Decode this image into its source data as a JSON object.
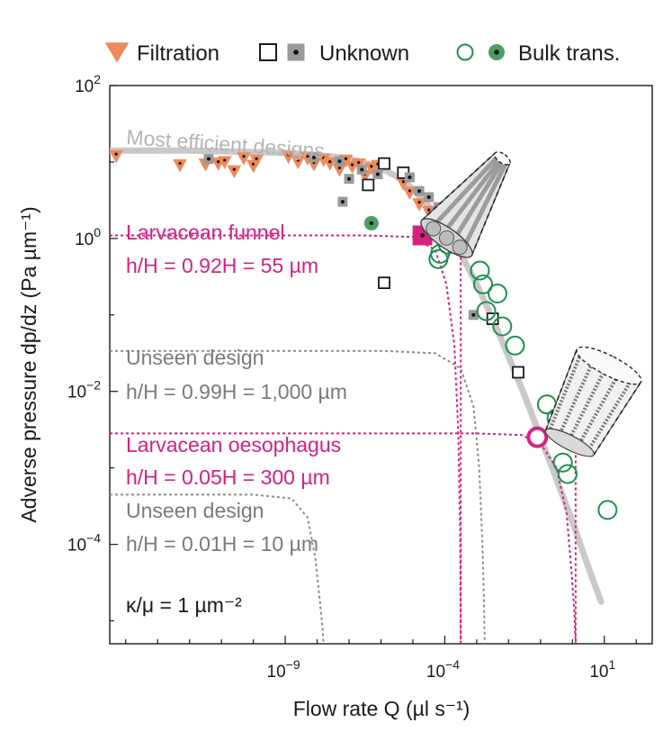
{
  "chart_data": {
    "type": "scatter",
    "title": "",
    "xlabel": "Flow rate Q (µl s⁻¹)",
    "ylabel": "Adverse pressure dp/dz (Pa µm⁻¹)",
    "x_scale": "log10",
    "y_scale": "log10",
    "xlim_log10": [
      -14.5,
      2.5
    ],
    "ylim_log10": [
      -5.3,
      2.0
    ],
    "x_ticks": [
      {
        "exp": -9,
        "base": "10",
        "sup": "−9"
      },
      {
        "exp": -4,
        "base": "10",
        "sup": "−4"
      },
      {
        "exp": 1,
        "base": "10",
        "sup": "1"
      }
    ],
    "y_ticks": [
      {
        "exp": 2,
        "base": "10",
        "sup": "2"
      },
      {
        "exp": 0,
        "base": "10",
        "sup": "0"
      },
      {
        "exp": -2,
        "base": "10",
        "sup": "−2"
      },
      {
        "exp": -4,
        "base": "10",
        "sup": "−4"
      }
    ],
    "legend": {
      "position": "top",
      "items": [
        {
          "label": "Filtration",
          "marker": "orange-triangle"
        },
        {
          "label": "Unknown",
          "marker": "open-and-filled-square"
        },
        {
          "label": "Bulk trans.",
          "marker": "open-and-filled-green-circle"
        }
      ]
    },
    "colors": {
      "filtration": "#ee8a5a",
      "unknown_fill": "#9a9a9a",
      "bulk": "#1f8f4e",
      "bulk_fill": "#4a9e66",
      "magenta": "#d6217f",
      "gray_curve": "#c9c9c9",
      "gray_text": "#7a7a7a"
    },
    "annotations": {
      "most_efficient": "Most efficient designs",
      "funnel_title": "Larvacean funnel",
      "funnel_ratio": "h/H = 0.92H = 55 µm",
      "unseen1_title": "Unseen design",
      "unseen1_ratio": "h/H = 0.99H = 1,000 µm",
      "oeso_title": "Larvacean oesophagus",
      "oeso_ratio": "h/H = 0.05H = 300 µm",
      "unseen2_title": "Unseen design",
      "unseen2_ratio": "h/H = 0.01H = 10 µm",
      "kappa": "κ/μ = 1 µm⁻²"
    },
    "efficiency_curve": {
      "x": [
        -14.5,
        -13,
        -12,
        -11,
        -10,
        -9,
        -8.5,
        -8,
        -7.5,
        -7,
        -6.5,
        -6,
        -5.5,
        -5,
        -4.5,
        -4,
        -3.5,
        -3,
        -2.5,
        -2,
        -1.5,
        -1,
        -0.5,
        0,
        0.5,
        0.9
      ],
      "y": [
        1.15,
        1.15,
        1.15,
        1.14,
        1.13,
        1.12,
        1.11,
        1.09,
        1.07,
        1.04,
        0.99,
        0.92,
        0.81,
        0.65,
        0.42,
        0.14,
        -0.2,
        -0.6,
        -1.05,
        -1.55,
        -2.05,
        -2.6,
        -3.15,
        -3.7,
        -4.3,
        -4.75
      ]
    },
    "design_curves": [
      {
        "name": "larvacean-funnel-curve",
        "color": "magenta",
        "y_plateau": 0.04,
        "x_cutoff": -3.5,
        "points": [
          [
            -14.5,
            0.04
          ],
          [
            -6.5,
            0.04
          ],
          [
            -5,
            0.02
          ],
          [
            -4.3,
            -0.15
          ],
          [
            -3.95,
            -0.6
          ],
          [
            -3.7,
            -1.4
          ],
          [
            -3.58,
            -2.5
          ],
          [
            -3.52,
            -3.8
          ],
          [
            -3.5,
            -5.3
          ]
        ]
      },
      {
        "name": "unseen-design-1-curve",
        "color": "gray",
        "y_plateau": -1.47,
        "x_cutoff": -2.75,
        "points": [
          [
            -14.5,
            -1.47
          ],
          [
            -6,
            -1.47
          ],
          [
            -4.3,
            -1.5
          ],
          [
            -3.5,
            -1.7
          ],
          [
            -3.1,
            -2.2
          ],
          [
            -2.92,
            -3.0
          ],
          [
            -2.82,
            -4.0
          ],
          [
            -2.77,
            -4.8
          ],
          [
            -2.75,
            -5.3
          ]
        ]
      },
      {
        "name": "larvacean-oesophagus-curve",
        "color": "magenta",
        "y_plateau": -2.55,
        "x_cutoff": 0.1,
        "points": [
          [
            -14.5,
            -2.55
          ],
          [
            -3,
            -2.55
          ],
          [
            -1.6,
            -2.57
          ],
          [
            -1.0,
            -2.68
          ],
          [
            -0.5,
            -3.0
          ],
          [
            -0.18,
            -3.6
          ],
          [
            -0.02,
            -4.4
          ],
          [
            0.06,
            -4.9
          ],
          [
            0.1,
            -5.3
          ]
        ]
      },
      {
        "name": "unseen-design-2-curve",
        "color": "gray",
        "y_plateau": -3.35,
        "x_cutoff": -7.8,
        "points": [
          [
            -14.5,
            -3.35
          ],
          [
            -10,
            -3.35
          ],
          [
            -8.8,
            -3.4
          ],
          [
            -8.3,
            -3.65
          ],
          [
            -8.05,
            -4.2
          ],
          [
            -7.9,
            -4.8
          ],
          [
            -7.83,
            -5.1
          ],
          [
            -7.8,
            -5.3
          ]
        ]
      }
    ],
    "series": [
      {
        "name": "Filtration",
        "marker": "triangle",
        "points": [
          [
            -14.3,
            1.08
          ],
          [
            -12.3,
            0.96
          ],
          [
            -11.5,
            0.97
          ],
          [
            -11.1,
            0.98
          ],
          [
            -10.9,
            1.0
          ],
          [
            -10.6,
            0.88
          ],
          [
            -10.3,
            1.05
          ],
          [
            -10.0,
            0.95
          ],
          [
            -9.9,
            1.02
          ],
          [
            -8.9,
            1.07
          ],
          [
            -8.6,
            1.0
          ],
          [
            -8.3,
            1.05
          ],
          [
            -8.1,
            0.97
          ],
          [
            -7.8,
            1.03
          ],
          [
            -7.6,
            0.98
          ],
          [
            -7.3,
            0.9
          ],
          [
            -7.1,
            1.02
          ],
          [
            -6.9,
            0.94
          ],
          [
            -6.7,
            0.97
          ],
          [
            -6.5,
            0.82
          ],
          [
            -6.3,
            0.92
          ],
          [
            -6.1,
            0.95
          ],
          [
            -5.3,
            0.72
          ],
          [
            -5.1,
            0.6
          ],
          [
            -4.8,
            0.45
          ],
          [
            -4.5,
            0.35
          ],
          [
            -4.2,
            0.3
          ]
        ]
      },
      {
        "name": "Unknown (open)",
        "marker": "open-square",
        "points": [
          [
            -5.9,
            0.98
          ],
          [
            -6.4,
            0.7
          ],
          [
            -5.3,
            0.86
          ],
          [
            -4.3,
            0.12
          ],
          [
            -4.0,
            0.06
          ],
          [
            -5.9,
            -0.58
          ],
          [
            -2.5,
            -1.05
          ],
          [
            -1.7,
            -1.75
          ]
        ]
      },
      {
        "name": "Unknown (filled)",
        "marker": "filled-square",
        "points": [
          [
            -11.4,
            1.04
          ],
          [
            -8.1,
            1.06
          ],
          [
            -7.3,
            1.01
          ],
          [
            -6.6,
            0.9
          ],
          [
            -6.1,
            0.84
          ],
          [
            -5.1,
            0.8
          ],
          [
            -4.8,
            0.62
          ],
          [
            -4.5,
            0.54
          ],
          [
            -4.2,
            0.41
          ],
          [
            -3.9,
            0.28
          ],
          [
            -7.0,
            0.78
          ],
          [
            -7.2,
            0.48
          ],
          [
            -3.1,
            -1.0
          ]
        ]
      },
      {
        "name": "Bulk trans. (open)",
        "marker": "open-circle",
        "points": [
          [
            -3.9,
            -0.08
          ],
          [
            -4.15,
            -0.2
          ],
          [
            -4.2,
            -0.27
          ],
          [
            -2.9,
            -0.42
          ],
          [
            -2.8,
            -0.6
          ],
          [
            -2.35,
            -0.72
          ],
          [
            -2.7,
            -0.95
          ],
          [
            -2.2,
            -1.15
          ],
          [
            -1.8,
            -1.4
          ],
          [
            -0.8,
            -2.17
          ],
          [
            -0.5,
            -2.35
          ],
          [
            -0.3,
            -2.93
          ],
          [
            -0.15,
            -3.08
          ],
          [
            1.1,
            -3.55
          ]
        ]
      },
      {
        "name": "Bulk trans. (filled)",
        "marker": "filled-circle",
        "points": [
          [
            -6.3,
            0.2
          ]
        ]
      },
      {
        "name": "Larvacean funnel",
        "marker": "magenta-filled-square",
        "points": [
          [
            -4.7,
            0.04
          ]
        ]
      },
      {
        "name": "Larvacean oesophagus",
        "marker": "magenta-open-circle",
        "points": [
          [
            -1.1,
            -2.6
          ]
        ]
      }
    ]
  }
}
